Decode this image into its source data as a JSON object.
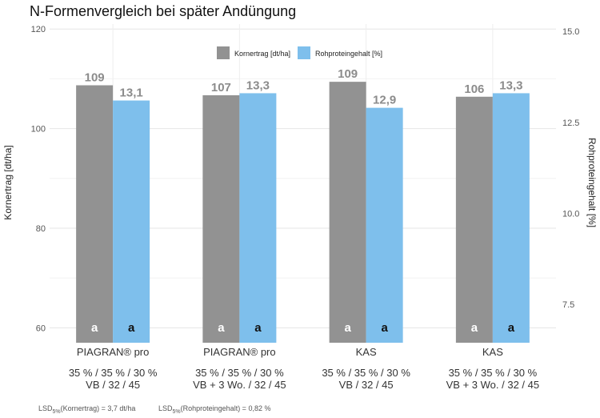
{
  "chart_data": {
    "type": "bar",
    "title": "N-Formenvergleich bei später Andüngung",
    "ylabel_left": "Kornertrag [dt/ha]",
    "ylabel_right": "Rohproteingehalt [%]",
    "ylim_left": [
      57,
      121
    ],
    "ylim_right": [
      6.45,
      15.2
    ],
    "yticks_left": [
      "60",
      "80",
      "100",
      "120"
    ],
    "yticks_right": [
      "7.5",
      "10.0",
      "12.5",
      "15.0"
    ],
    "yticks_left_values": [
      60,
      80,
      100,
      120
    ],
    "yticks_right_values": [
      7.5,
      10.0,
      12.5,
      15.0
    ],
    "grid": true,
    "legend_position": "top-center",
    "categories": [
      {
        "product": "PIAGRAN® pro",
        "line1": "35 % / 35 % / 30 %",
        "line2": "VB / 32 / 45"
      },
      {
        "product": "PIAGRAN® pro",
        "line1": "35 % / 35 % / 30 %",
        "line2": "VB + 3 Wo. / 32 / 45"
      },
      {
        "product": "KAS",
        "line1": "35 % / 35 % / 30 %",
        "line2": "VB / 32 / 45"
      },
      {
        "product": "KAS",
        "line1": "35 % / 35 % / 30 %",
        "line2": "VB + 3 Wo. / 32 / 45"
      }
    ],
    "series": [
      {
        "name": "Kornertrag [dt/ha]",
        "axis": "left",
        "color": "#929292",
        "values": [
          108.7,
          106.7,
          109.4,
          106.4
        ],
        "labels": [
          "109",
          "107",
          "109",
          "106"
        ],
        "significance": [
          "a",
          "a",
          "a",
          "a"
        ],
        "sig_color": "#ffffff"
      },
      {
        "name": "Rohproteingehalt [%]",
        "axis": "right",
        "color": "#7ebfec",
        "values": [
          13.1,
          13.3,
          12.9,
          13.3
        ],
        "labels": [
          "13,1",
          "13,3",
          "12,9",
          "13,3"
        ],
        "significance": [
          "a",
          "a",
          "a",
          "a"
        ],
        "sig_color": "#111111"
      }
    ],
    "footnotes": [
      {
        "prefix": "LSD",
        "sub": "5%",
        "text": "(Kornertrag) = 3,7 dt/ha"
      },
      {
        "prefix": "LSD",
        "sub": "5%",
        "text": "(Rohproteingehalt) = 0,82 %"
      }
    ]
  }
}
